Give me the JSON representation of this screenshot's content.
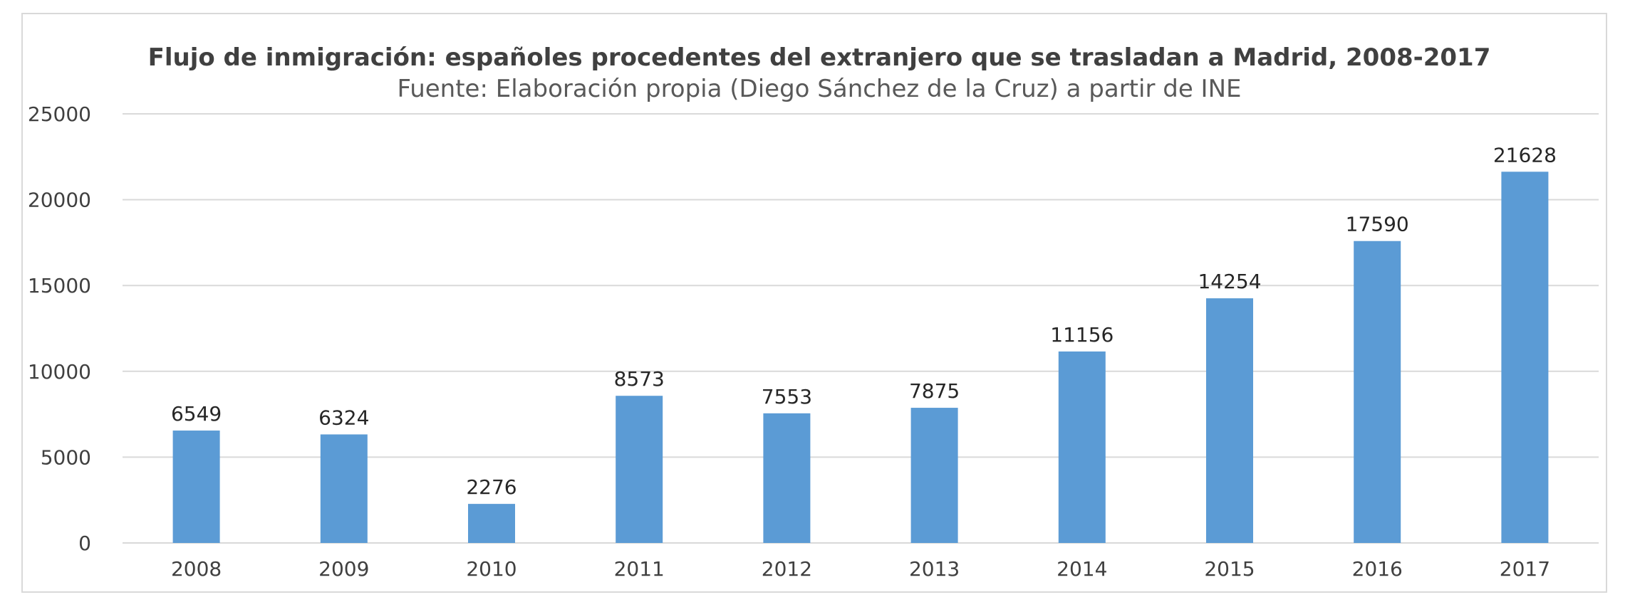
{
  "chart_data": {
    "type": "bar",
    "title": "Flujo de inmigración: españoles procedentes del extranjero que se trasladan a Madrid, 2008-2017",
    "subtitle": "Fuente: Elaboración propia (Diego Sánchez de la Cruz) a partir de INE",
    "xlabel": "",
    "ylabel": "",
    "categories": [
      "2008",
      "2009",
      "2010",
      "2011",
      "2012",
      "2013",
      "2014",
      "2015",
      "2016",
      "2017"
    ],
    "values": [
      6549,
      6324,
      2276,
      8573,
      7553,
      7875,
      11156,
      14254,
      17590,
      21628
    ],
    "data_labels": [
      "6549",
      "6324",
      "2276",
      "8573",
      "7553",
      "7875",
      "11156",
      "14254",
      "17590",
      "21628"
    ],
    "ylim": [
      0,
      25000
    ],
    "yticks": [
      0,
      5000,
      10000,
      15000,
      20000,
      25000
    ],
    "ytick_labels": [
      "0",
      "5000",
      "10000",
      "15000",
      "20000",
      "25000"
    ],
    "grid": true,
    "legend": "none",
    "colors": {
      "bar": "#5b9bd5",
      "grid": "#d9d9d9",
      "frame": "#d9d9d9"
    }
  }
}
